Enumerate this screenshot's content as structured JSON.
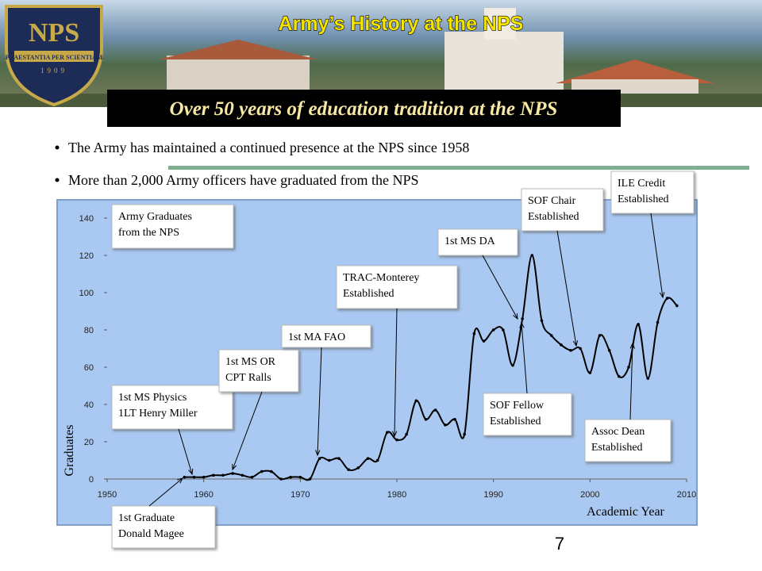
{
  "header": {
    "title": "Army’s History at the NPS",
    "subtitle": "Over 50 years of education tradition at the NPS",
    "logo": {
      "text": "NPS",
      "motto": "PRAESTANTIA PER SCIENTIAM",
      "year": "1909"
    }
  },
  "bullets": [
    "The Army has maintained a continued presence at the NPS since 1958",
    "More than 2,000 Army officers have graduated from the NPS"
  ],
  "chart_data": {
    "type": "line",
    "title": {
      "lines": [
        "Army Graduates",
        "from the NPS"
      ]
    },
    "x_label": "Academic Year",
    "y_label": "Graduates",
    "x": [
      1958,
      1959,
      1960,
      1961,
      1962,
      1963,
      1964,
      1965,
      1966,
      1967,
      1968,
      1969,
      1970,
      1971,
      1972,
      1973,
      1974,
      1975,
      1976,
      1977,
      1978,
      1979,
      1980,
      1981,
      1982,
      1983,
      1984,
      1985,
      1986,
      1987,
      1988,
      1989,
      1990,
      1991,
      1992,
      1993,
      1994,
      1995,
      1996,
      1997,
      1998,
      1999,
      2000,
      2001,
      2002,
      2003,
      2004,
      2005,
      2006,
      2007,
      2008,
      2009
    ],
    "values": [
      1,
      1,
      1,
      2,
      2,
      3,
      2,
      1,
      4,
      4,
      0,
      1,
      1,
      0,
      11,
      10,
      11,
      5,
      6,
      11,
      10,
      25,
      21,
      24,
      42,
      32,
      37,
      29,
      32,
      24,
      78,
      74,
      80,
      80,
      61,
      86,
      120,
      85,
      77,
      72,
      69,
      70,
      57,
      77,
      69,
      55,
      60,
      83,
      54,
      84,
      97,
      93
    ],
    "color": "#000000",
    "xlim": [
      1950,
      2010
    ],
    "xticks": [
      1950,
      1960,
      1970,
      1980,
      1990,
      2000,
      2010
    ],
    "ylim": [
      0,
      140
    ],
    "yticks": [
      0,
      20,
      40,
      60,
      80,
      100,
      120,
      140
    ],
    "annotations": [
      {
        "lines": [
          "1st MS Physics",
          "1LT Henry Miller"
        ]
      },
      {
        "lines": [
          "1st MS OR",
          "CPT Ralls"
        ]
      },
      {
        "lines": [
          "1st MA FAO"
        ]
      },
      {
        "lines": [
          "TRAC-Monterey",
          "Established"
        ]
      },
      {
        "lines": [
          "1st MS DA"
        ]
      },
      {
        "lines": [
          "SOF Chair",
          "Established"
        ]
      },
      {
        "lines": [
          "ILE Credit",
          "Established"
        ]
      },
      {
        "lines": [
          "SOF Fellow",
          "Established"
        ]
      },
      {
        "lines": [
          "Assoc Dean",
          "Established"
        ]
      },
      {
        "lines": [
          "1st Graduate",
          "Donald Magee"
        ]
      }
    ]
  },
  "page_number": "7"
}
